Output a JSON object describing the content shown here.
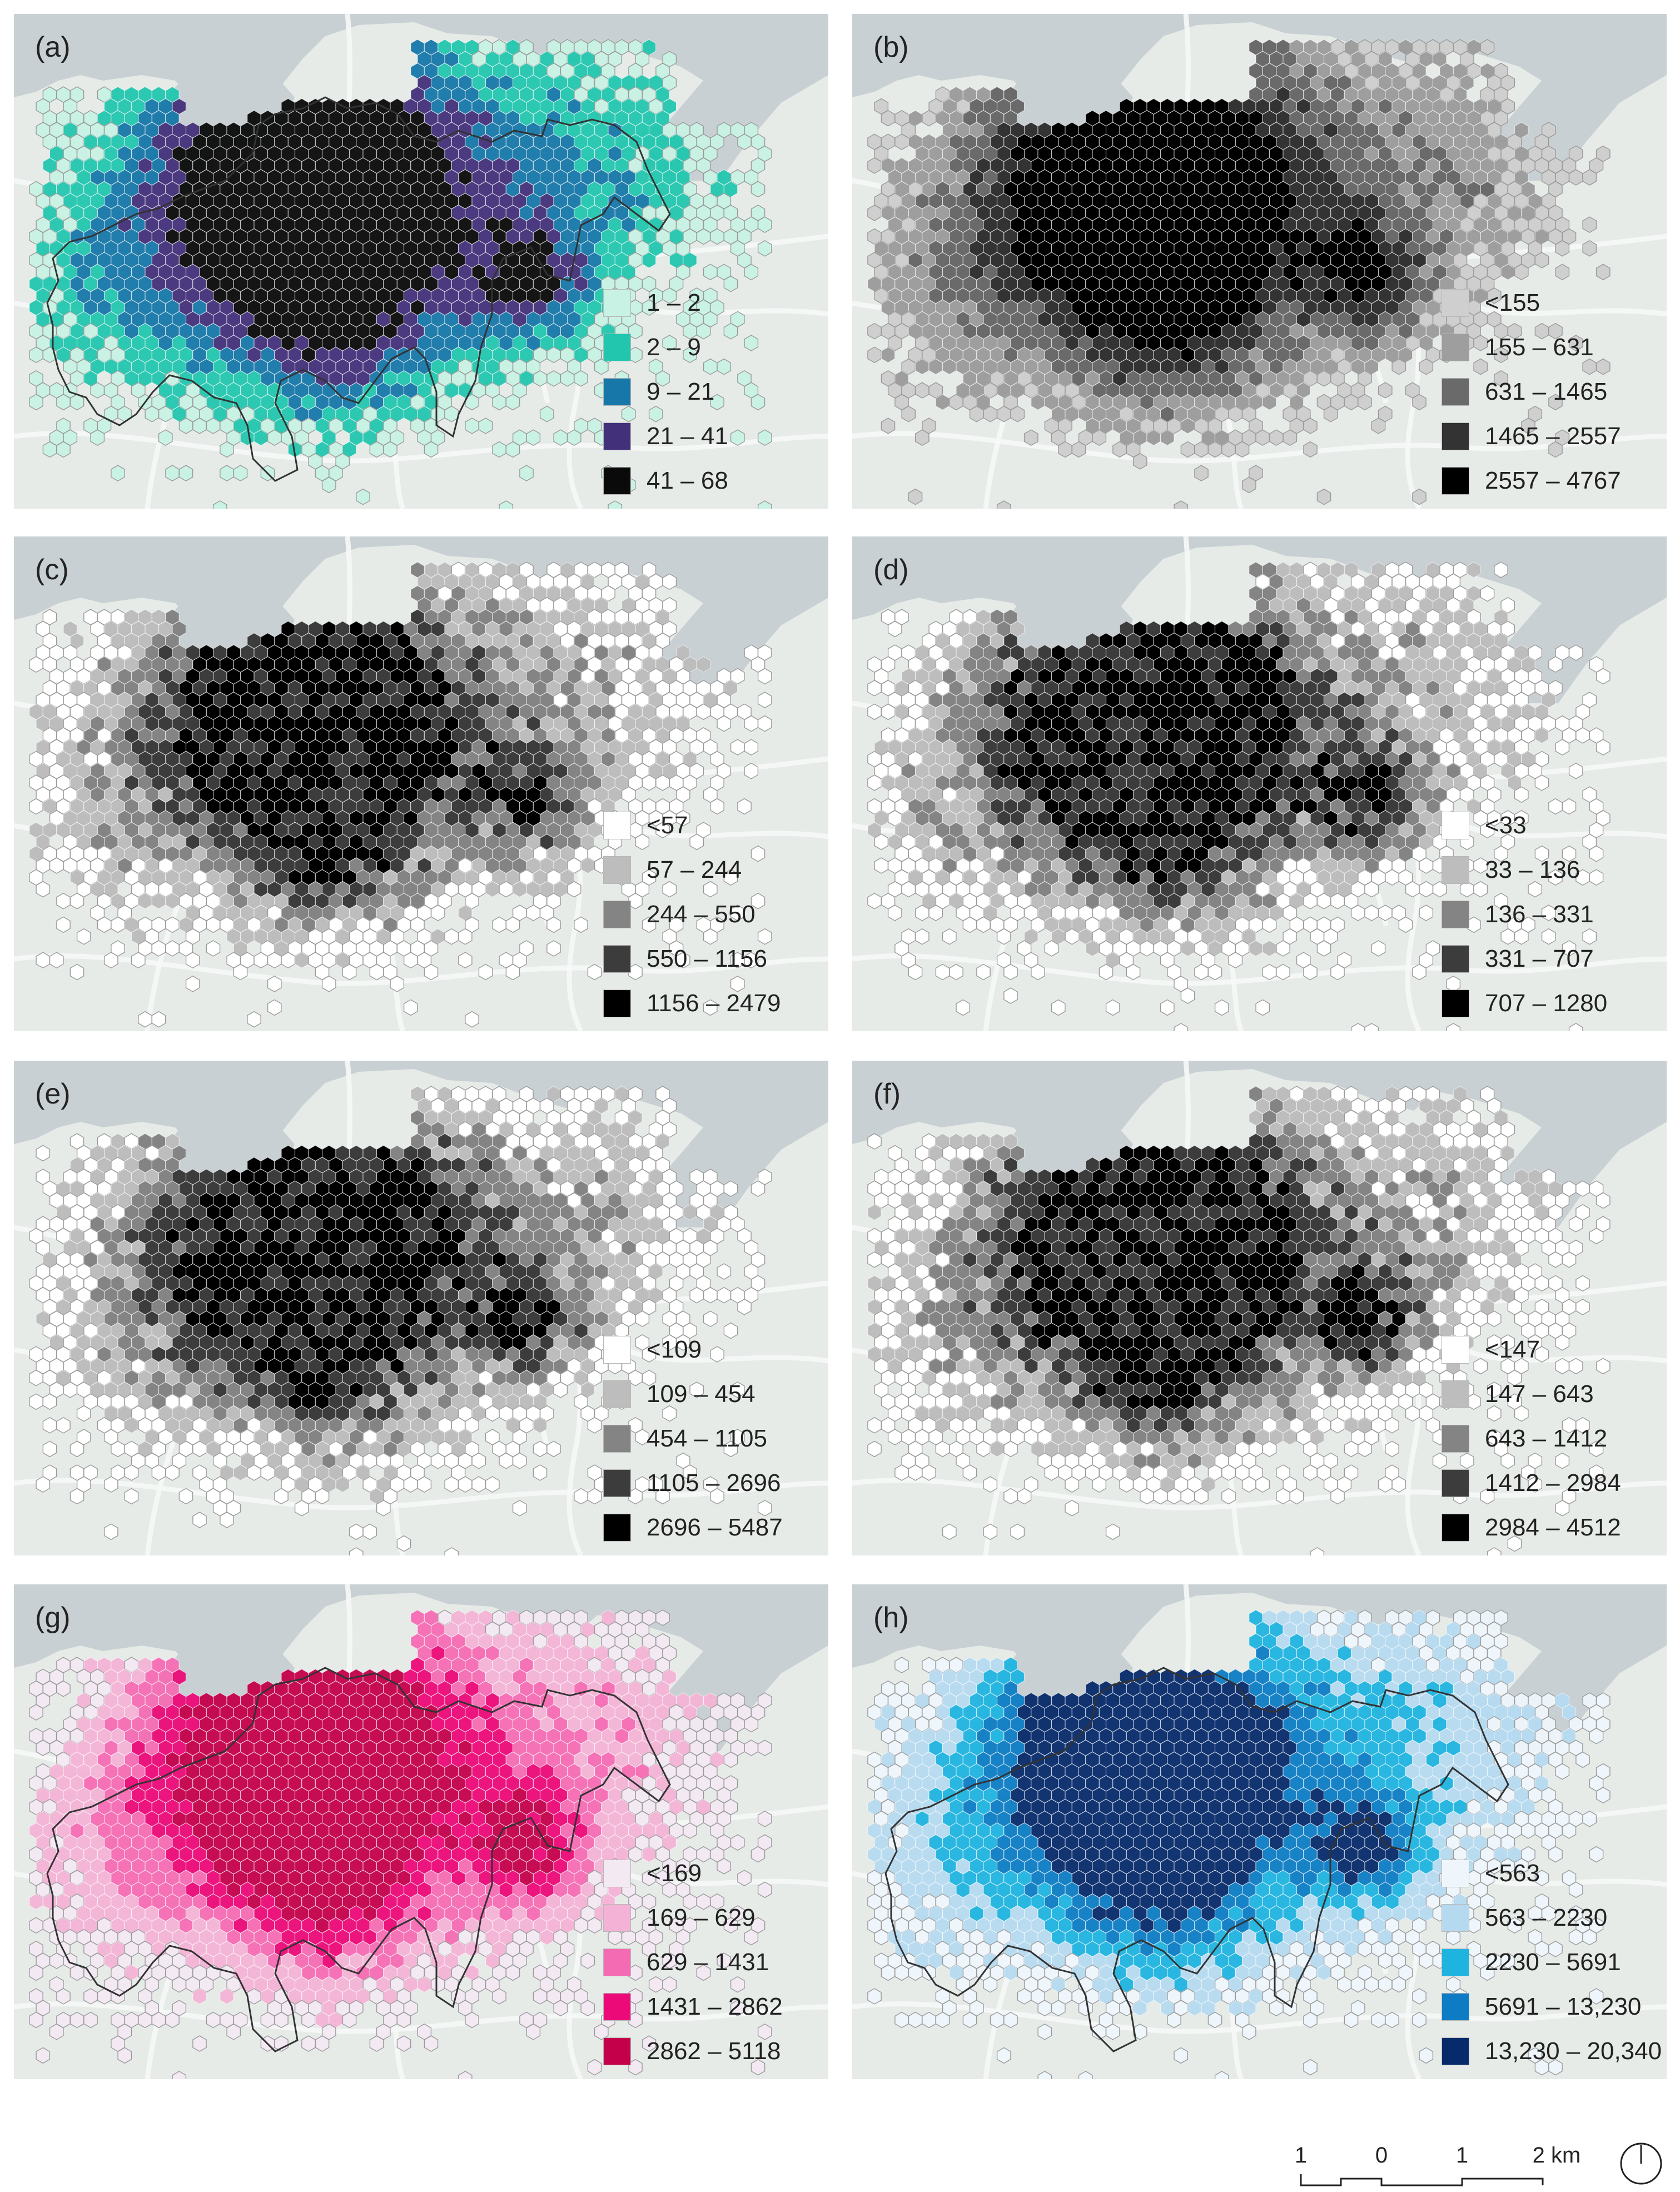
{
  "figure": {
    "panels": [
      {
        "label": "(a)",
        "style": "teal",
        "outline": true,
        "legend": [
          {
            "text": "1 – 2",
            "color": "#c8f2e4"
          },
          {
            "text": "2 – 9",
            "color": "#22c6ae"
          },
          {
            "text": "9 – 21",
            "color": "#1677a8"
          },
          {
            "text": "21 – 41",
            "color": "#43307a"
          },
          {
            "text": "41 – 68",
            "color": "#0a0a0a"
          }
        ]
      },
      {
        "label": "(b)",
        "style": "gray",
        "outline": false,
        "legend": [
          {
            "text": "<155",
            "color": "#cfcfcf"
          },
          {
            "text": "155 – 631",
            "color": "#9e9e9e"
          },
          {
            "text": "631 – 1465",
            "color": "#6a6a6a"
          },
          {
            "text": "1465 – 2557",
            "color": "#333333"
          },
          {
            "text": "2557 – 4767",
            "color": "#000000"
          }
        ]
      },
      {
        "label": "(c)",
        "style": "grayw",
        "outline": false,
        "legend": [
          {
            "text": "<57",
            "color": "#ffffff"
          },
          {
            "text": "57 – 244",
            "color": "#bdbdbd"
          },
          {
            "text": "244 – 550",
            "color": "#848484"
          },
          {
            "text": "550 – 1156",
            "color": "#3c3c3c"
          },
          {
            "text": "1156 – 2479",
            "color": "#000000"
          }
        ]
      },
      {
        "label": "(d)",
        "style": "grayw",
        "outline": false,
        "legend": [
          {
            "text": "<33",
            "color": "#ffffff"
          },
          {
            "text": "33 – 136",
            "color": "#bdbdbd"
          },
          {
            "text": "136 – 331",
            "color": "#848484"
          },
          {
            "text": "331 – 707",
            "color": "#3c3c3c"
          },
          {
            "text": "707 – 1280",
            "color": "#000000"
          }
        ]
      },
      {
        "label": "(e)",
        "style": "grayw",
        "outline": false,
        "legend": [
          {
            "text": "<109",
            "color": "#ffffff"
          },
          {
            "text": "109 – 454",
            "color": "#bdbdbd"
          },
          {
            "text": "454 – 1105",
            "color": "#848484"
          },
          {
            "text": "1105 – 2696",
            "color": "#3c3c3c"
          },
          {
            "text": "2696 – 5487",
            "color": "#000000"
          }
        ]
      },
      {
        "label": "(f)",
        "style": "grayw",
        "outline": false,
        "legend": [
          {
            "text": "<147",
            "color": "#ffffff"
          },
          {
            "text": "147 – 643",
            "color": "#bdbdbd"
          },
          {
            "text": "643 – 1412",
            "color": "#848484"
          },
          {
            "text": "1412 – 2984",
            "color": "#3c3c3c"
          },
          {
            "text": "2984 – 4512",
            "color": "#000000"
          }
        ]
      },
      {
        "label": "(g)",
        "style": "pink",
        "outline": true,
        "legend": [
          {
            "text": "<169",
            "color": "#f3e9f3"
          },
          {
            "text": "169 – 629",
            "color": "#f4b3d6"
          },
          {
            "text": "629 – 1431",
            "color": "#f56bb3"
          },
          {
            "text": "1431 – 2862",
            "color": "#ec0a78"
          },
          {
            "text": "2862 – 5118",
            "color": "#c4004a"
          }
        ]
      },
      {
        "label": "(h)",
        "style": "blue",
        "outline": true,
        "legend": [
          {
            "text": "<563",
            "color": "#eef6fc"
          },
          {
            "text": "563 – 2230",
            "color": "#b5daf0"
          },
          {
            "text": "2230 – 5691",
            "color": "#1fb4e0"
          },
          {
            "text": "5691 – 13,230",
            "color": "#0d7cc4"
          },
          {
            "text": "13,230 – 20,340",
            "color": "#062a6a"
          }
        ]
      }
    ],
    "scale": {
      "ticks": [
        "1",
        "0",
        "1",
        "2 km"
      ]
    },
    "map_colors": {
      "land": "#e6ebe8",
      "water": "#c9d0d3",
      "roads": "#f6f8f7",
      "outline": "#333333"
    }
  }
}
